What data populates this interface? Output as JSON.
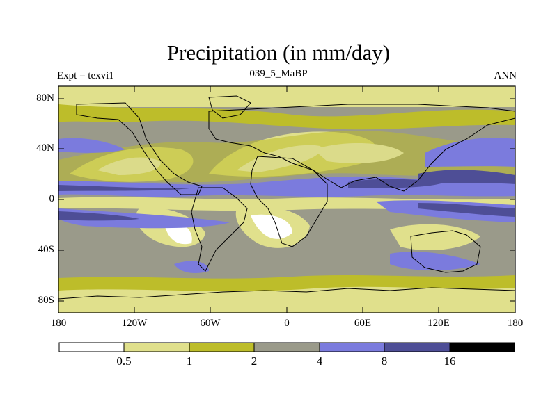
{
  "title": "Precipitation (in mm/day)",
  "subtitle_left": "Expt = texvi1",
  "subtitle_center": "039_5_MaBP",
  "subtitle_right": "ANN",
  "y_ticks": [
    "80N",
    "40N",
    "0",
    "40S",
    "80S"
  ],
  "x_ticks": [
    "180",
    "120W",
    "60W",
    "0",
    "60E",
    "120E",
    "180"
  ],
  "colorbar": {
    "labels": [
      "0.5",
      "1",
      "2",
      "4",
      "8",
      "16"
    ],
    "colors": [
      "#ffffff",
      "#e0e08c",
      "#bdbd2a",
      "#9a9a8a",
      "#7b7bdd",
      "#4e4e96",
      "#000000"
    ]
  }
}
